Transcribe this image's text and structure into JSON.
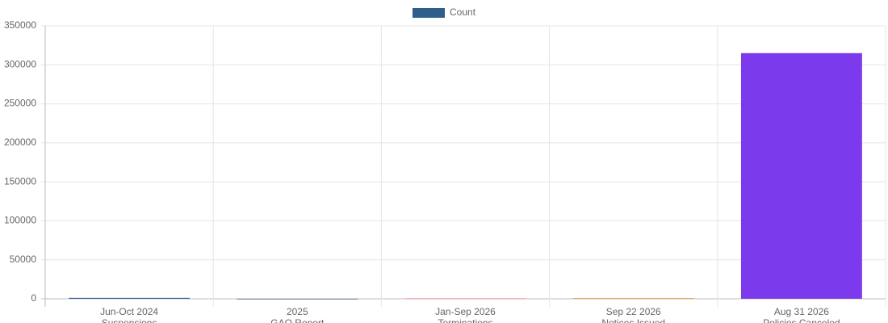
{
  "chart_data": {
    "type": "bar",
    "categories": [
      [
        "Jun-Oct 2024",
        "Suspensions"
      ],
      [
        "2025",
        "GAO Report"
      ],
      [
        "Jan-Sep 2026",
        "Terminations"
      ],
      [
        "Sep 22 2026",
        "Notices Issued"
      ],
      [
        "Aug 31 2026",
        "Policies Canceled"
      ]
    ],
    "series": [
      {
        "name": "Count",
        "color": "#2e5f8a",
        "colors": [
          "#2e5f8a",
          "#6b7fa3",
          "#e08a8a",
          "#e8a04c",
          "#7c3aed"
        ],
        "values": [
          1200,
          100,
          600,
          1000,
          315000
        ]
      }
    ],
    "ylim": [
      0,
      350000
    ],
    "yticks": [
      0,
      50000,
      100000,
      150000,
      200000,
      250000,
      300000,
      350000
    ],
    "grid": true,
    "legend": "top"
  }
}
